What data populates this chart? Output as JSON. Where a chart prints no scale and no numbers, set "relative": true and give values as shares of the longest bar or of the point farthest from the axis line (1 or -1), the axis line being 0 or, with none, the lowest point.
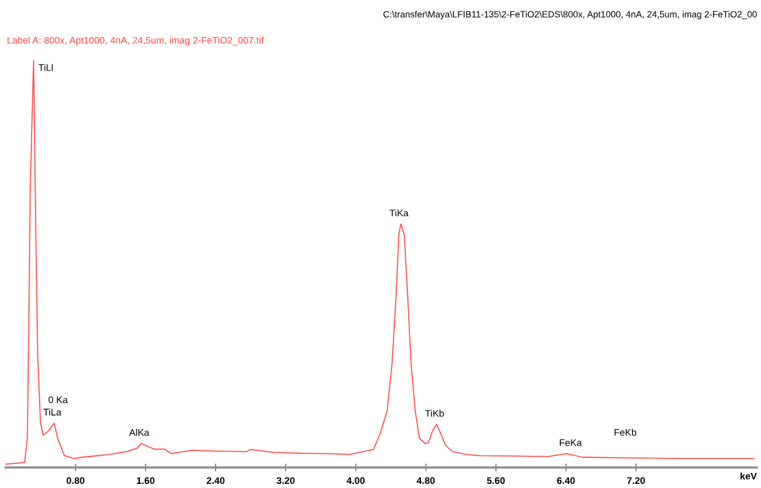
{
  "chart_data": {
    "type": "line",
    "relative": true,
    "title": "C:\\transfer\\Maya\\LFIB11-135\\2-FeTiO2\\EDS\\800x, Apt1000, 4nA, 24,5um, imag 2-FeTiO2_00",
    "xlabel": "keV",
    "x": [
      0.0,
      0.219,
      0.25,
      0.266,
      0.282,
      0.321,
      0.344,
      0.368,
      0.399,
      0.43,
      0.501,
      0.556,
      0.595,
      0.673,
      0.782,
      0.876,
      1.189,
      1.385,
      1.502,
      1.549,
      1.698,
      1.815,
      1.894,
      1.917,
      2.128,
      2.441,
      2.754,
      2.793,
      3.067,
      3.38,
      3.693,
      3.928,
      4.202,
      4.28,
      4.358,
      4.413,
      4.46,
      4.491,
      4.515,
      4.554,
      4.593,
      4.632,
      4.679,
      4.726,
      4.789,
      4.828,
      4.875,
      4.922,
      4.969,
      5.023,
      5.102,
      5.258,
      5.415,
      6.197,
      6.408,
      6.588,
      6.98,
      7.762,
      8.545
    ],
    "series": [
      {
        "name": "Label A: 800x, Apt1000, 4nA, 24,5um, imag 2-FeTiO2_007.tif",
        "color": "#ff4848",
        "values": [
          0.008,
          0.012,
          0.072,
          0.341,
          0.677,
          1.0,
          0.61,
          0.274,
          0.113,
          0.079,
          0.092,
          0.109,
          0.072,
          0.029,
          0.022,
          0.025,
          0.032,
          0.039,
          0.047,
          0.059,
          0.045,
          0.045,
          0.034,
          0.035,
          0.042,
          0.04,
          0.039,
          0.044,
          0.037,
          0.035,
          0.034,
          0.032,
          0.044,
          0.084,
          0.139,
          0.252,
          0.42,
          0.571,
          0.598,
          0.571,
          0.42,
          0.252,
          0.139,
          0.072,
          0.059,
          0.061,
          0.089,
          0.106,
          0.084,
          0.055,
          0.039,
          0.032,
          0.029,
          0.027,
          0.034,
          0.025,
          0.024,
          0.022,
          0.022
        ]
      }
    ],
    "xlim": [
      0,
      8.58
    ],
    "xticks": [
      {
        "value": 0.8,
        "label": "0.80"
      },
      {
        "value": 1.6,
        "label": "1.60"
      },
      {
        "value": 2.4,
        "label": "2.40"
      },
      {
        "value": 3.2,
        "label": "3.20"
      },
      {
        "value": 4.0,
        "label": "4.00"
      },
      {
        "value": 4.8,
        "label": "4.80"
      },
      {
        "value": 5.6,
        "label": "5.60"
      },
      {
        "value": 6.4,
        "label": "6.40"
      },
      {
        "value": 7.2,
        "label": "7.20"
      }
    ],
    "annotations": [
      {
        "text": "TiLl",
        "x": 0.321,
        "y": 1.0
      },
      {
        "text": "0 Ka",
        "x": 0.556,
        "y": 0.109
      },
      {
        "text": "TiLa",
        "x": 0.556,
        "y": 0.109
      },
      {
        "text": "AlKa",
        "x": 1.549,
        "y": 0.059
      },
      {
        "text": "TiKa",
        "x": 4.515,
        "y": 0.598
      },
      {
        "text": "TiKb",
        "x": 4.922,
        "y": 0.106
      },
      {
        "text": "FeKa",
        "x": 6.408,
        "y": 0.034
      },
      "FeKb"
    ],
    "grid": false,
    "legend": "top left"
  }
}
